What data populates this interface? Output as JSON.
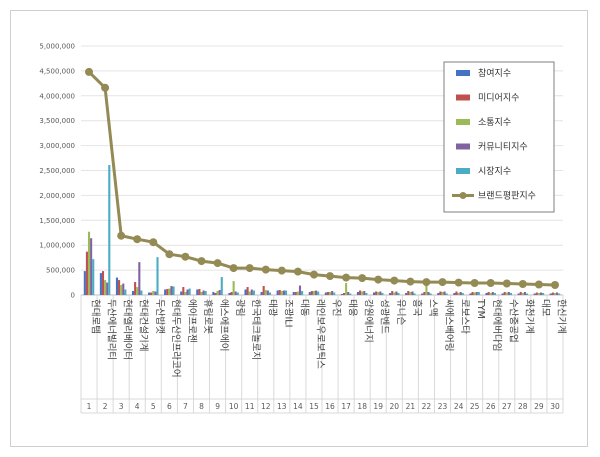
{
  "chart_data": {
    "type": "bar",
    "title": "",
    "xlabel": "",
    "ylabel": "",
    "ylim": [
      0,
      5000000
    ],
    "yticks": [
      0,
      500000,
      1000000,
      1500000,
      2000000,
      2500000,
      3000000,
      3500000,
      4000000,
      4500000,
      5000000
    ],
    "ytick_labels": [
      "0",
      "500,000",
      "1,000,000",
      "1,500,000",
      "2,000,000",
      "2,500,000",
      "3,000,000",
      "3,500,000",
      "4,000,000",
      "4,500,000",
      "5,000,000"
    ],
    "grid": true,
    "legend_position": "right",
    "categories": [
      "현대로템",
      "두산에너빌리티",
      "현대엘리베이터",
      "현대건설기계",
      "두산밥캣",
      "현대두산인프라코어",
      "에이프로젠",
      "휴림로봇",
      "에스에프에이",
      "광림",
      "한국테크놀로지",
      "태광",
      "조광ILI",
      "대동",
      "레인보우로보틱스",
      "우진",
      "태웅",
      "강원에너지",
      "성광벤드",
      "유니슨",
      "흥국",
      "스맥",
      "씨에스베어링",
      "로보스타",
      "TYM",
      "현대에버다임",
      "수산중공업",
      "화천기계",
      "대모",
      "한신기계"
    ],
    "ranks": [
      "1",
      "2",
      "3",
      "4",
      "5",
      "6",
      "7",
      "8",
      "9",
      "10",
      "11",
      "12",
      "13",
      "14",
      "15",
      "16",
      "17",
      "18",
      "19",
      "20",
      "21",
      "22",
      "23",
      "24",
      "25",
      "26",
      "27",
      "28",
      "29",
      "30"
    ],
    "series": [
      {
        "name": "참여지수",
        "kind": "bar",
        "color": "#4472c4",
        "values": [
          480000,
          440000,
          350000,
          80000,
          50000,
          110000,
          70000,
          110000,
          60000,
          40000,
          110000,
          60000,
          90000,
          60000,
          60000,
          50000,
          20000,
          60000,
          50000,
          40000,
          40000,
          30000,
          40000,
          40000,
          30000,
          40000,
          30000,
          30000,
          30000,
          30000
        ]
      },
      {
        "name": "미디어지수",
        "kind": "bar",
        "color": "#c0504d",
        "values": [
          870000,
          480000,
          300000,
          260000,
          50000,
          120000,
          160000,
          120000,
          40000,
          60000,
          160000,
          180000,
          100000,
          60000,
          80000,
          60000,
          40000,
          90000,
          70000,
          80000,
          80000,
          60000,
          70000,
          70000,
          60000,
          60000,
          60000,
          60000,
          50000,
          50000
        ]
      },
      {
        "name": "소통지수",
        "kind": "bar",
        "color": "#9bbb59",
        "values": [
          1270000,
          300000,
          200000,
          160000,
          80000,
          130000,
          60000,
          60000,
          80000,
          280000,
          70000,
          100000,
          80000,
          70000,
          80000,
          60000,
          240000,
          70000,
          60000,
          50000,
          60000,
          200000,
          60000,
          40000,
          50000,
          40000,
          50000,
          40000,
          40000,
          40000
        ]
      },
      {
        "name": "커뮤니티지수",
        "kind": "bar",
        "color": "#8064a2",
        "values": [
          1140000,
          250000,
          230000,
          660000,
          70000,
          180000,
          110000,
          90000,
          100000,
          70000,
          110000,
          90000,
          90000,
          190000,
          90000,
          80000,
          60000,
          80000,
          70000,
          70000,
          70000,
          60000,
          70000,
          60000,
          60000,
          60000,
          60000,
          60000,
          50000,
          50000
        ]
      },
      {
        "name": "시장지수",
        "kind": "bar",
        "color": "#4bacc6",
        "values": [
          720000,
          2610000,
          110000,
          90000,
          760000,
          170000,
          130000,
          80000,
          360000,
          50000,
          90000,
          50000,
          90000,
          80000,
          70000,
          50000,
          30000,
          40000,
          40000,
          40000,
          30000,
          30000,
          30000,
          40000,
          60000,
          40000,
          40000,
          30000,
          40000,
          30000
        ]
      },
      {
        "name": "브랜드평판지수",
        "kind": "line",
        "color": "#948a54",
        "values": [
          4480000,
          4160000,
          1190000,
          1120000,
          1060000,
          820000,
          770000,
          680000,
          640000,
          540000,
          540000,
          510000,
          490000,
          470000,
          410000,
          380000,
          350000,
          340000,
          310000,
          290000,
          270000,
          260000,
          260000,
          250000,
          240000,
          240000,
          230000,
          220000,
          210000,
          200000
        ]
      }
    ]
  }
}
